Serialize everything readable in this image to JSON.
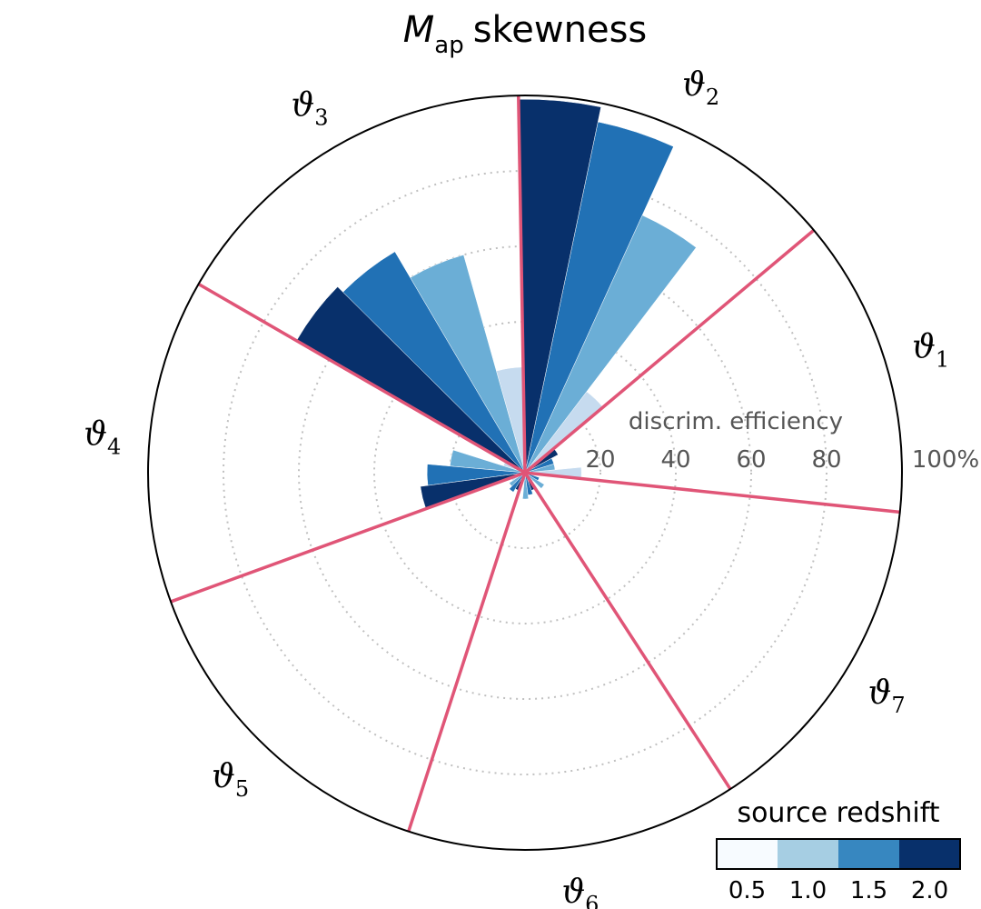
{
  "title": {
    "symbol": "M",
    "subscript": "ap",
    "text": "skewness"
  },
  "chart_data": {
    "type": "polar_bar",
    "radial_axis": {
      "label": "discrim. efficiency",
      "range": [
        0,
        100
      ],
      "ticks": [
        20,
        40,
        60,
        80,
        100
      ],
      "tick_labels": [
        "20",
        "40",
        "60",
        "80",
        "100%"
      ],
      "grid": "dotted"
    },
    "sectors": [
      {
        "symbol": "ϑ",
        "sub": "1",
        "start_deg": -6,
        "end_deg": 40
      },
      {
        "symbol": "ϑ",
        "sub": "2",
        "start_deg": 40,
        "end_deg": 91
      },
      {
        "symbol": "ϑ",
        "sub": "3",
        "start_deg": 91,
        "end_deg": 150
      },
      {
        "symbol": "ϑ",
        "sub": "4",
        "start_deg": 150,
        "end_deg": 200
      },
      {
        "symbol": "ϑ",
        "sub": "5",
        "start_deg": 200,
        "end_deg": 252
      },
      {
        "symbol": "ϑ",
        "sub": "6",
        "start_deg": 252,
        "end_deg": 303
      },
      {
        "symbol": "ϑ",
        "sub": "7",
        "start_deg": 303,
        "end_deg": 354
      }
    ],
    "series": [
      {
        "name": "0.5",
        "color": "#c6dbef",
        "values": [
          15,
          27,
          28,
          6,
          4,
          2,
          3
        ]
      },
      {
        "name": "1.0",
        "color": "#6baed6",
        "values": [
          8,
          75,
          60,
          20,
          5,
          7,
          6
        ]
      },
      {
        "name": "1.5",
        "color": "#2171b5",
        "values": [
          8,
          95,
          68,
          26,
          6,
          6,
          4
        ]
      },
      {
        "name": "2.0",
        "color": "#08306b",
        "values": [
          10,
          99,
          70,
          28,
          5,
          5,
          2
        ]
      }
    ],
    "sector_line_color": "#e05577"
  },
  "colorbar": {
    "label": "source redshift",
    "tick_labels": [
      "0.5",
      "1.0",
      "1.5",
      "2.0"
    ],
    "colors": [
      "#f7fbff",
      "#a6cee3",
      "#3787c0",
      "#08306b"
    ]
  }
}
